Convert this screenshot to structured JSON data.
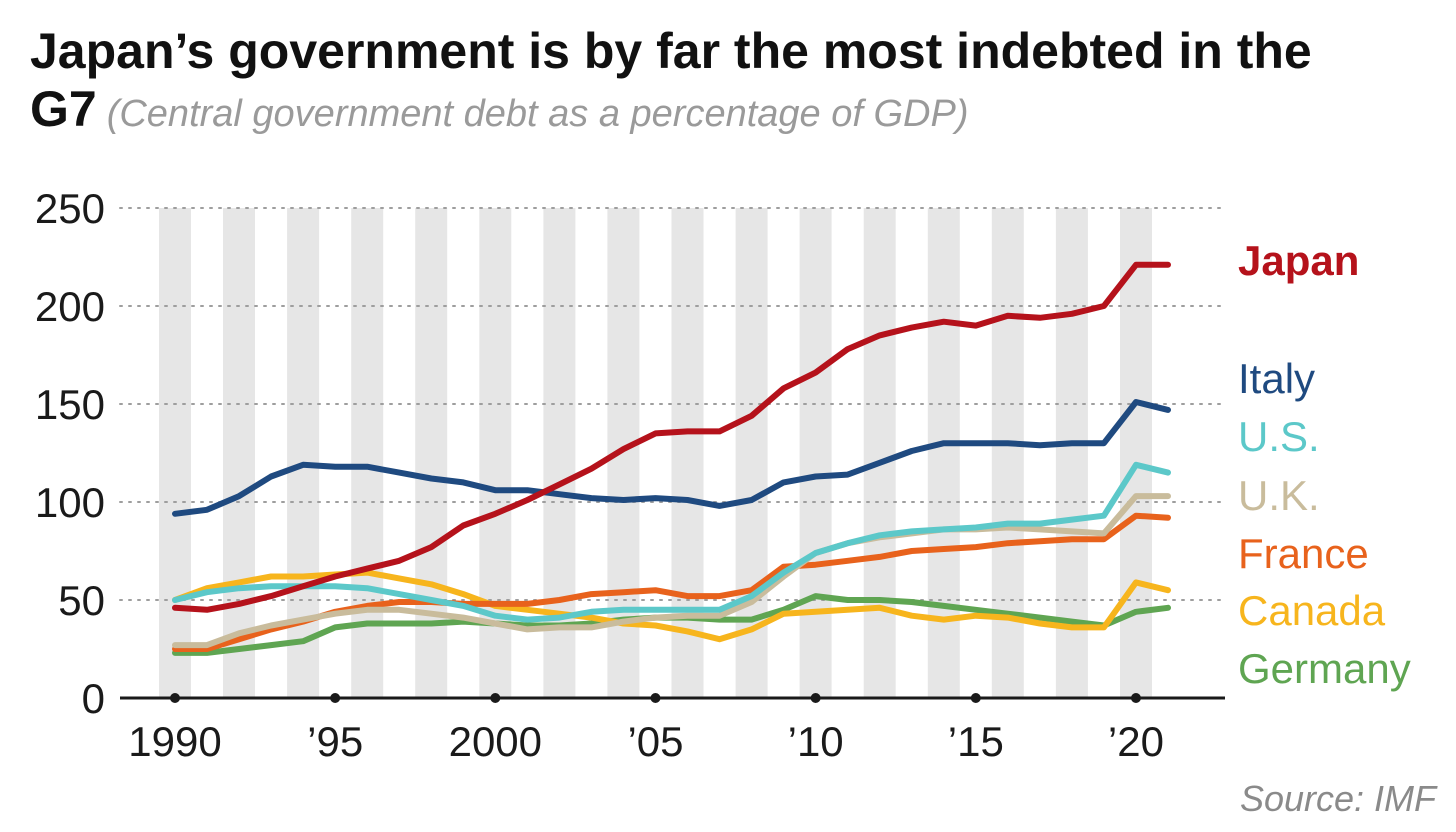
{
  "header": {
    "title": "Japan’s government is by far the most indebted in the G7",
    "subtitle": "(Central government debt as a percentage of GDP)"
  },
  "footer": {
    "source": "Source: IMF"
  },
  "colors": {
    "background": "#ffffff",
    "stripe": "#e6e6e6",
    "gridline": "#9e9e9e",
    "axis": "#1a1a1a",
    "Japan": "#b5121b",
    "Italy": "#1f4a80",
    "U.S.": "#5cc8c9",
    "U.K.": "#c9bc9c",
    "France": "#e8621c",
    "Canada": "#f7b51d",
    "Germany": "#5fa552"
  },
  "chart_data": {
    "type": "line",
    "title": "Japan’s government is by far the most indebted in the G7",
    "subtitle": "(Central government debt as a percentage of GDP)",
    "xlabel": "",
    "ylabel": "",
    "xlim": [
      1990,
      2021
    ],
    "ylim": [
      0,
      250
    ],
    "yticks": [
      0,
      50,
      100,
      150,
      200,
      250
    ],
    "xticks": [
      {
        "value": 1990,
        "label": "1990"
      },
      {
        "value": 1995,
        "label": "’95"
      },
      {
        "value": 2000,
        "label": "2000"
      },
      {
        "value": 2005,
        "label": "’05"
      },
      {
        "value": 2010,
        "label": "’10"
      },
      {
        "value": 2015,
        "label": "’15"
      },
      {
        "value": 2020,
        "label": "’20"
      }
    ],
    "grid": "horizontal dotted",
    "background_stripes": "alternating years",
    "legend": "direct labels at right",
    "x": [
      1990,
      1991,
      1992,
      1993,
      1994,
      1995,
      1996,
      1997,
      1998,
      1999,
      2000,
      2001,
      2002,
      2003,
      2004,
      2005,
      2006,
      2007,
      2008,
      2009,
      2010,
      2011,
      2012,
      2013,
      2014,
      2015,
      2016,
      2017,
      2018,
      2019,
      2020,
      2021
    ],
    "series": [
      {
        "name": "Japan",
        "values": [
          46,
          45,
          48,
          52,
          57,
          62,
          66,
          70,
          77,
          88,
          94,
          101,
          109,
          117,
          127,
          135,
          136,
          136,
          144,
          158,
          166,
          178,
          185,
          189,
          192,
          190,
          195,
          194,
          196,
          200,
          221,
          221
        ]
      },
      {
        "name": "Italy",
        "values": [
          94,
          96,
          103,
          113,
          119,
          118,
          118,
          115,
          112,
          110,
          106,
          106,
          104,
          102,
          101,
          102,
          101,
          98,
          101,
          110,
          113,
          114,
          120,
          126,
          130,
          130,
          130,
          129,
          130,
          130,
          151,
          147
        ]
      },
      {
        "name": "U.S.",
        "values": [
          50,
          54,
          56,
          57,
          57,
          57,
          56,
          53,
          50,
          47,
          42,
          40,
          41,
          44,
          45,
          45,
          45,
          45,
          52,
          64,
          74,
          79,
          83,
          85,
          86,
          87,
          89,
          89,
          91,
          93,
          119,
          115
        ]
      },
      {
        "name": "U.K.",
        "values": [
          27,
          27,
          33,
          37,
          40,
          43,
          45,
          45,
          43,
          41,
          38,
          35,
          36,
          36,
          39,
          41,
          42,
          42,
          49,
          62,
          74,
          79,
          82,
          84,
          86,
          86,
          87,
          86,
          85,
          84,
          103,
          103
        ]
      },
      {
        "name": "France",
        "values": [
          25,
          25,
          30,
          35,
          39,
          44,
          47,
          49,
          49,
          48,
          48,
          48,
          50,
          53,
          54,
          55,
          52,
          52,
          55,
          67,
          68,
          70,
          72,
          75,
          76,
          77,
          79,
          80,
          81,
          81,
          93,
          92
        ]
      },
      {
        "name": "Canada",
        "values": [
          50,
          56,
          59,
          62,
          62,
          63,
          64,
          61,
          58,
          53,
          47,
          45,
          43,
          41,
          38,
          37,
          34,
          30,
          35,
          43,
          44,
          45,
          46,
          42,
          40,
          42,
          41,
          38,
          36,
          36,
          59,
          55
        ]
      },
      {
        "name": "Germany",
        "values": [
          23,
          23,
          25,
          27,
          29,
          36,
          38,
          38,
          38,
          39,
          38,
          37,
          37,
          38,
          40,
          41,
          41,
          40,
          40,
          45,
          52,
          50,
          50,
          49,
          47,
          45,
          43,
          41,
          39,
          37,
          44,
          46
        ]
      }
    ],
    "labels": [
      {
        "series": "Japan",
        "text": "Japan",
        "bold": true
      },
      {
        "series": "Italy",
        "text": "Italy",
        "bold": false
      },
      {
        "series": "U.S.",
        "text": "U.S.",
        "bold": false
      },
      {
        "series": "U.K.",
        "text": "U.K.",
        "bold": false
      },
      {
        "series": "France",
        "text": "France",
        "bold": false
      },
      {
        "series": "Canada",
        "text": "Canada",
        "bold": false
      },
      {
        "series": "Germany",
        "text": "Germany",
        "bold": false
      }
    ]
  }
}
